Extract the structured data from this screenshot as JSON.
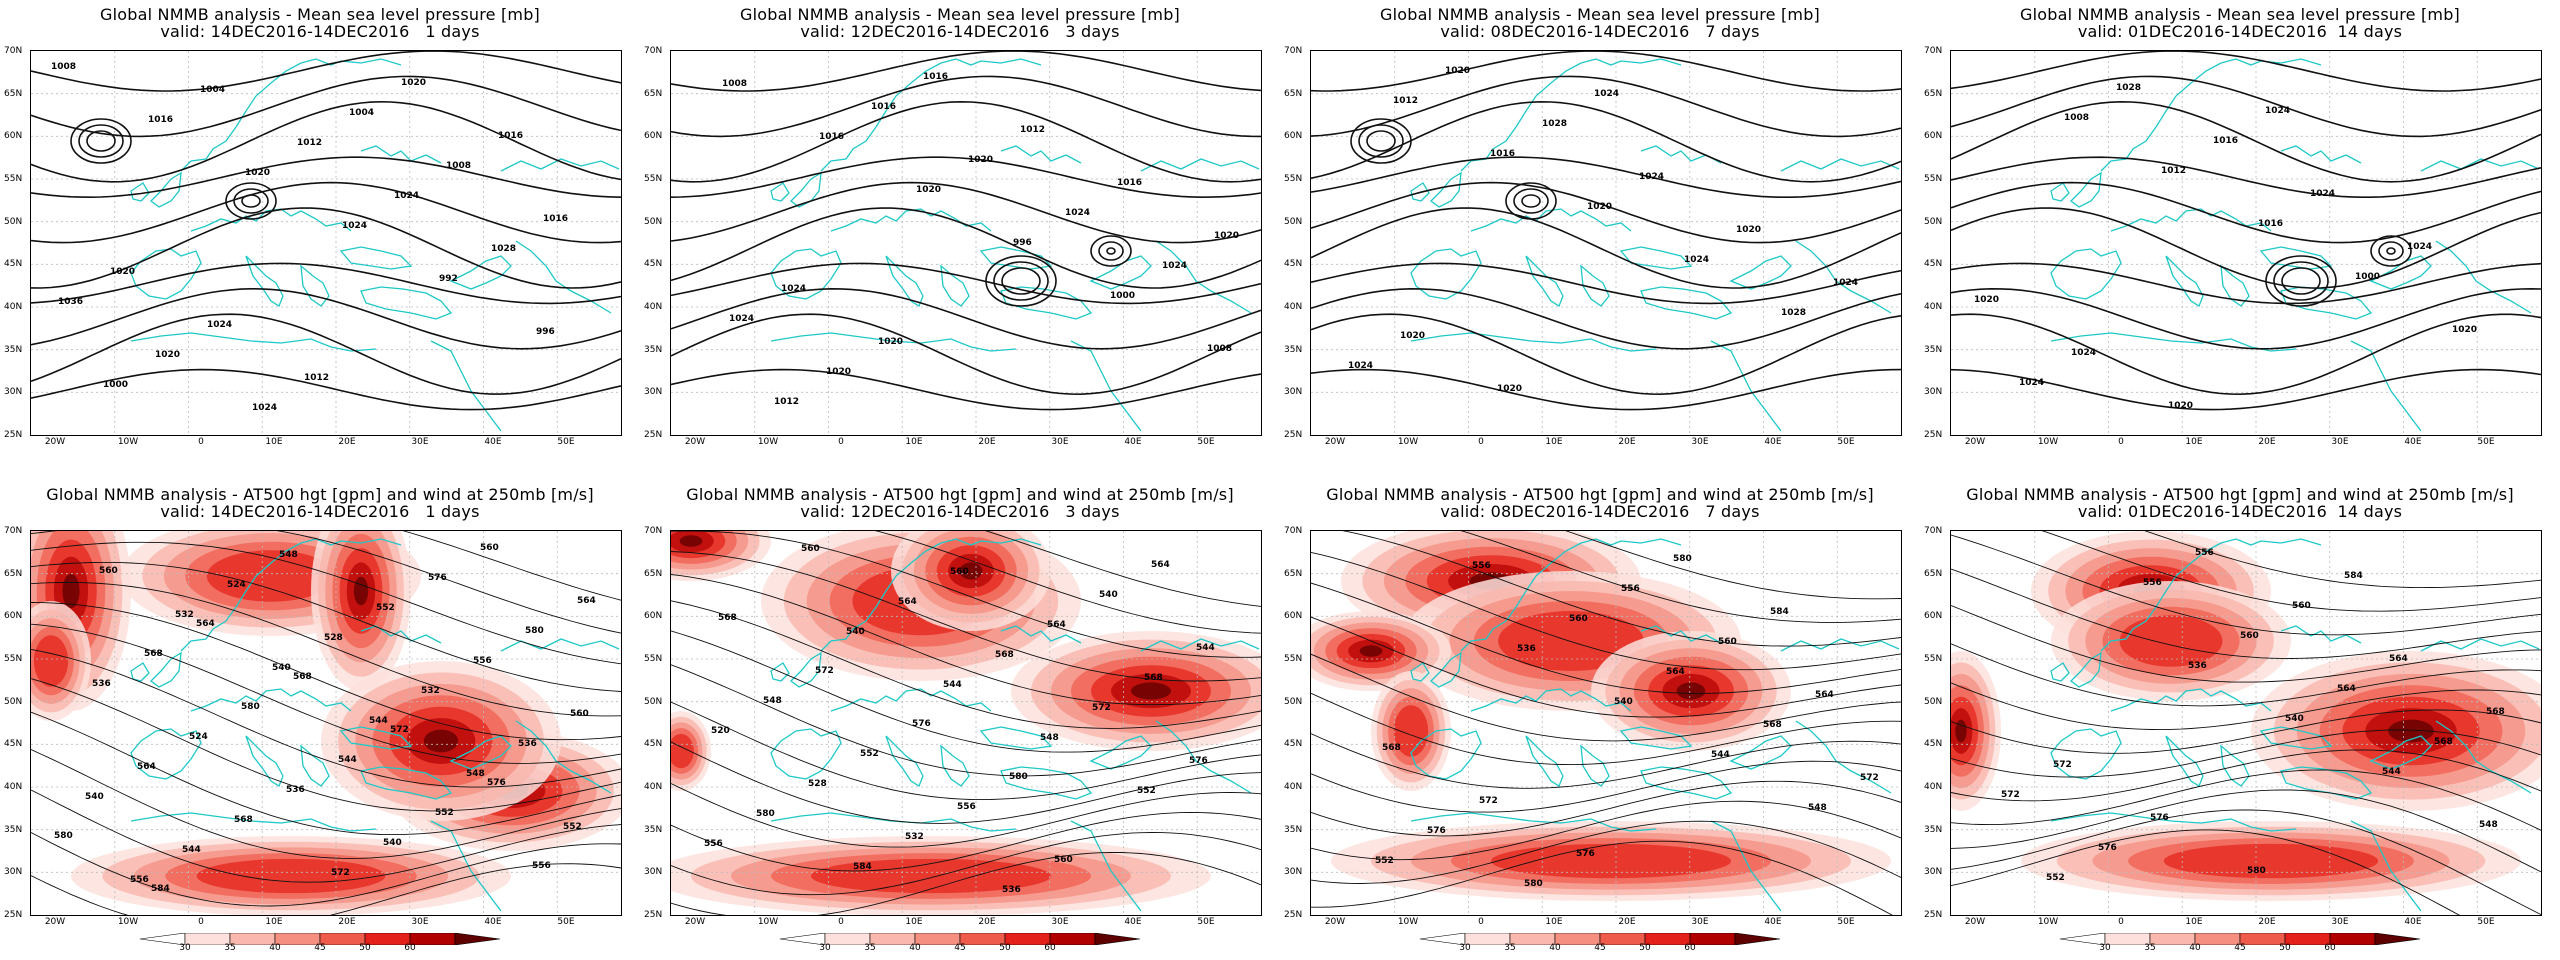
{
  "panels": [
    {
      "title": "Global NMMB analysis - Mean sea level pressure [mb]",
      "valid": "valid: 14DEC2016-14DEC2016   1 days",
      "type": "mslp",
      "contour_labels": [
        "1008",
        "1016",
        "1020",
        "1024",
        "992",
        "996",
        "1000",
        "1004",
        "1012",
        "1024",
        "1028",
        "1036",
        "1020",
        "1024",
        "1004",
        "1008",
        "1016",
        "1020",
        "1024",
        "1012",
        "1020",
        "1016"
      ]
    },
    {
      "title": "Global NMMB analysis - Mean sea level pressure [mb]",
      "valid": "valid: 12DEC2016-14DEC2016   3 days",
      "type": "mslp",
      "contour_labels": [
        "1008",
        "1016",
        "1020",
        "996",
        "1000",
        "1008",
        "1012",
        "1016",
        "1020",
        "1024",
        "1024",
        "1024",
        "1020",
        "1016",
        "1012",
        "1016",
        "1020",
        "1024",
        "1020"
      ]
    },
    {
      "title": "Global NMMB analysis - Mean sea level pressure [mb]",
      "valid": "valid: 08DEC2016-14DEC2016   7 days",
      "type": "mslp",
      "contour_labels": [
        "1012",
        "1016",
        "1020",
        "1024",
        "1028",
        "1024",
        "1020",
        "1028",
        "1024",
        "1020",
        "1024",
        "1020",
        "1020",
        "1024"
      ]
    },
    {
      "title": "Global NMMB analysis - Mean sea level pressure [mb]",
      "valid": "valid: 01DEC2016-14DEC2016  14 days",
      "type": "mslp",
      "contour_labels": [
        "1008",
        "1012",
        "1016",
        "1000",
        "1020",
        "1024",
        "1028",
        "1016",
        "1024",
        "1024",
        "1020",
        "1024",
        "1020",
        "1024"
      ]
    },
    {
      "title": "Global NMMB analysis - AT500 hgt [gpm] and wind at 250mb [m/s]",
      "valid": "valid: 14DEC2016-14DEC2016   1 days",
      "type": "z500",
      "contour_labels": [
        "532",
        "540",
        "544",
        "548",
        "552",
        "556",
        "524",
        "528",
        "532",
        "536",
        "540",
        "544",
        "548",
        "552",
        "556",
        "560",
        "564",
        "568",
        "572",
        "576",
        "580",
        "536",
        "524",
        "536",
        "540",
        "560",
        "564",
        "568",
        "580",
        "544",
        "552",
        "556",
        "560",
        "564",
        "568",
        "572",
        "576",
        "580",
        "584"
      ]
    },
    {
      "title": "Global NMMB analysis - AT500 hgt [gpm] and wind at 250mb [m/s]",
      "valid": "valid: 12DEC2016-14DEC2016   3 days",
      "type": "z500",
      "contour_labels": [
        "540",
        "544",
        "548",
        "552",
        "556",
        "560",
        "564",
        "568",
        "572",
        "576",
        "580",
        "584",
        "560",
        "564",
        "568",
        "520",
        "528",
        "532",
        "536",
        "540",
        "544",
        "548",
        "552",
        "556",
        "560",
        "564",
        "568",
        "572",
        "576",
        "580"
      ]
    },
    {
      "title": "Global NMMB analysis - AT500 hgt [gpm] and wind at 250mb [m/s]",
      "valid": "valid: 08DEC2016-14DEC2016   7 days",
      "type": "z500",
      "contour_labels": [
        "536",
        "540",
        "544",
        "548",
        "552",
        "556",
        "560",
        "564",
        "568",
        "572",
        "576",
        "580",
        "556",
        "560",
        "564",
        "568",
        "572",
        "576",
        "580",
        "584"
      ]
    },
    {
      "title": "Global NMMB analysis - AT500 hgt [gpm] and wind at 250mb [m/s]",
      "valid": "valid: 01DEC2016-14DEC2016  14 days",
      "type": "z500",
      "contour_labels": [
        "536",
        "540",
        "544",
        "548",
        "552",
        "556",
        "560",
        "564",
        "568",
        "572",
        "576",
        "556",
        "560",
        "564",
        "568",
        "572",
        "576",
        "580",
        "584"
      ]
    }
  ],
  "lat_labels": [
    "70N",
    "65N",
    "60N",
    "55N",
    "50N",
    "45N",
    "40N",
    "35N",
    "30N",
    "25N"
  ],
  "lon_labels": [
    "20W",
    "10W",
    "0",
    "10E",
    "20E",
    "30E",
    "40E",
    "50E"
  ],
  "colorbar": {
    "labels": [
      "30",
      "35",
      "40",
      "45",
      "50",
      "60"
    ],
    "colors": [
      "#ffffff",
      "#fde0dc",
      "#f9b7ad",
      "#f48f81",
      "#ef5b4b",
      "#e4211a",
      "#b10000",
      "#5e0000"
    ]
  },
  "colors": {
    "coast": "#1ec8c8",
    "contour": "#111111",
    "grid": "#bbbbbb"
  }
}
